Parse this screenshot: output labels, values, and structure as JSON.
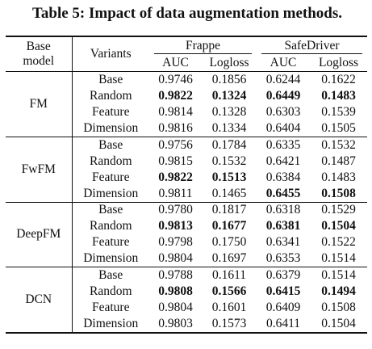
{
  "caption": "Table 5: Impact of data augmentation methods.",
  "header": {
    "base_model_line1": "Base",
    "base_model_line2": "model",
    "variants": "Variants",
    "datasets": [
      "Frappe",
      "SafeDriver"
    ],
    "metrics": [
      "AUC",
      "Logloss",
      "AUC",
      "Logloss"
    ]
  },
  "groups": [
    {
      "model": "FM",
      "rows": [
        {
          "variant": "Base",
          "values": [
            "0.9746",
            "0.1856",
            "0.6244",
            "0.1622"
          ],
          "bold": [
            false,
            false,
            false,
            false
          ]
        },
        {
          "variant": "Random",
          "values": [
            "0.9822",
            "0.1324",
            "0.6449",
            "0.1483"
          ],
          "bold": [
            true,
            true,
            true,
            true
          ]
        },
        {
          "variant": "Feature",
          "values": [
            "0.9814",
            "0.1328",
            "0.6303",
            "0.1539"
          ],
          "bold": [
            false,
            false,
            false,
            false
          ]
        },
        {
          "variant": "Dimension",
          "values": [
            "0.9816",
            "0.1334",
            "0.6404",
            "0.1505"
          ],
          "bold": [
            false,
            false,
            false,
            false
          ]
        }
      ]
    },
    {
      "model": "FwFM",
      "rows": [
        {
          "variant": "Base",
          "values": [
            "0.9756",
            "0.1784",
            "0.6335",
            "0.1532"
          ],
          "bold": [
            false,
            false,
            false,
            false
          ]
        },
        {
          "variant": "Random",
          "values": [
            "0.9815",
            "0.1532",
            "0.6421",
            "0.1487"
          ],
          "bold": [
            false,
            false,
            false,
            false
          ]
        },
        {
          "variant": "Feature",
          "values": [
            "0.9822",
            "0.1513",
            "0.6384",
            "0.1483"
          ],
          "bold": [
            true,
            true,
            false,
            false
          ]
        },
        {
          "variant": "Dimension",
          "values": [
            "0.9811",
            "0.1465",
            "0.6455",
            "0.1508"
          ],
          "bold": [
            false,
            false,
            true,
            true
          ]
        }
      ]
    },
    {
      "model": "DeepFM",
      "rows": [
        {
          "variant": "Base",
          "values": [
            "0.9780",
            "0.1817",
            "0.6318",
            "0.1529"
          ],
          "bold": [
            false,
            false,
            false,
            false
          ]
        },
        {
          "variant": "Random",
          "values": [
            "0.9813",
            "0.1677",
            "0.6381",
            "0.1504"
          ],
          "bold": [
            true,
            true,
            true,
            true
          ]
        },
        {
          "variant": "Feature",
          "values": [
            "0.9798",
            "0.1750",
            "0.6341",
            "0.1522"
          ],
          "bold": [
            false,
            false,
            false,
            false
          ]
        },
        {
          "variant": "Dimension",
          "values": [
            "0.9804",
            "0.1697",
            "0.6353",
            "0.1514"
          ],
          "bold": [
            false,
            false,
            false,
            false
          ]
        }
      ]
    },
    {
      "model": "DCN",
      "rows": [
        {
          "variant": "Base",
          "values": [
            "0.9788",
            "0.1611",
            "0.6379",
            "0.1514"
          ],
          "bold": [
            false,
            false,
            false,
            false
          ]
        },
        {
          "variant": "Random",
          "values": [
            "0.9808",
            "0.1566",
            "0.6415",
            "0.1494"
          ],
          "bold": [
            true,
            true,
            true,
            true
          ]
        },
        {
          "variant": "Feature",
          "values": [
            "0.9804",
            "0.1601",
            "0.6409",
            "0.1508"
          ],
          "bold": [
            false,
            false,
            false,
            false
          ]
        },
        {
          "variant": "Dimension",
          "values": [
            "0.9803",
            "0.1573",
            "0.6411",
            "0.1504"
          ],
          "bold": [
            false,
            false,
            false,
            false
          ]
        }
      ]
    }
  ]
}
